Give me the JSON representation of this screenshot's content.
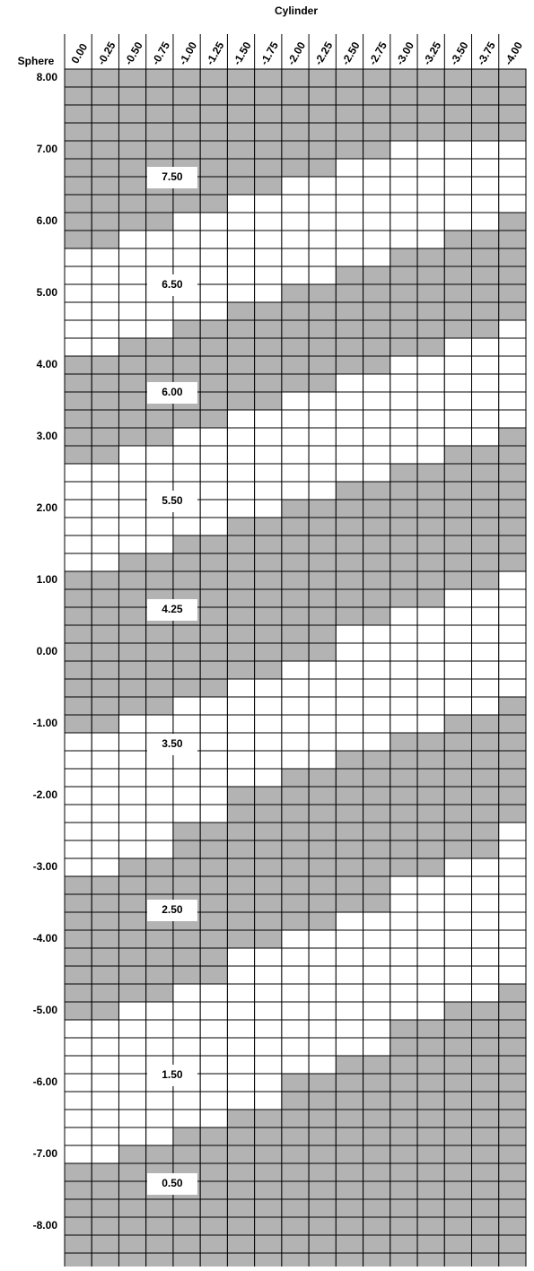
{
  "title": "Cylinder",
  "row_header": "Sphere",
  "columns": [
    "0.00",
    "-0.25",
    "-0.50",
    "-0.75",
    "-1.00",
    "-1.25",
    "-1.50",
    "-1.75",
    "-2.00",
    "-2.25",
    "-2.50",
    "-2.75",
    "-3.00",
    "-3.25",
    "-3.50",
    "-3.75",
    "-4.00"
  ],
  "rows": [
    "8.00",
    "7.00",
    "6.00",
    "5.00",
    "4.00",
    "3.00",
    "2.00",
    "1.00",
    "0.00",
    "-1.00",
    "-2.00",
    "-3.00",
    "-4.00",
    "-5.00",
    "-6.00",
    "-7.00",
    "-8.00"
  ],
  "zones": [
    "7.50",
    "6.50",
    "6.00",
    "5.50",
    "4.25",
    "3.50",
    "2.50",
    "1.50",
    "0.50"
  ]
}
